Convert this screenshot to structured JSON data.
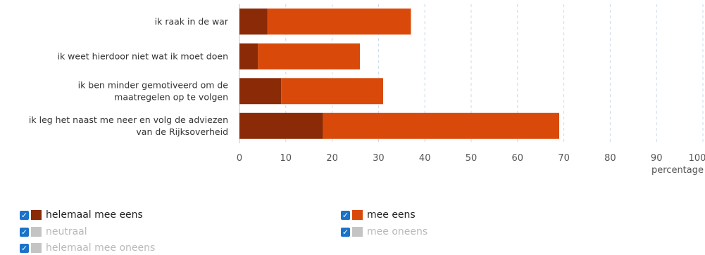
{
  "chart_data": {
    "type": "bar",
    "orientation": "horizontal",
    "stacked": true,
    "categories": [
      [
        "ik raak in de war"
      ],
      [
        "ik weet hierdoor niet wat ik moet doen"
      ],
      [
        "ik ben minder gemotiveerd om de",
        "maatregelen op te volgen"
      ],
      [
        "ik leg het naast me neer en volg de adviezen",
        "van de Rijksoverheid"
      ]
    ],
    "series": [
      {
        "name": "helemaal mee eens",
        "color": "#8b2a06",
        "visible": true,
        "values": [
          6,
          4,
          9,
          18
        ]
      },
      {
        "name": "mee eens",
        "color": "#d94a0a",
        "visible": true,
        "values": [
          31,
          22,
          22,
          51
        ]
      }
    ],
    "xlim": [
      0,
      100
    ],
    "xticks": [
      0,
      10,
      20,
      30,
      40,
      50,
      60,
      70,
      80,
      90,
      100
    ],
    "xlabel": "percentage",
    "grid": true,
    "grid_style": "dashed-vertical"
  },
  "legend": {
    "items": [
      {
        "label": "helemaal mee eens",
        "color": "#8b2a06",
        "checked": true,
        "active": true
      },
      {
        "label": "mee eens",
        "color": "#d94a0a",
        "checked": true,
        "active": true
      },
      {
        "label": "neutraal",
        "color": "#c4c4c4",
        "checked": true,
        "active": false
      },
      {
        "label": "mee oneens",
        "color": "#c4c4c4",
        "checked": true,
        "active": false
      },
      {
        "label": "helemaal mee oneens",
        "color": "#c4c4c4",
        "checked": true,
        "active": false
      }
    ]
  }
}
